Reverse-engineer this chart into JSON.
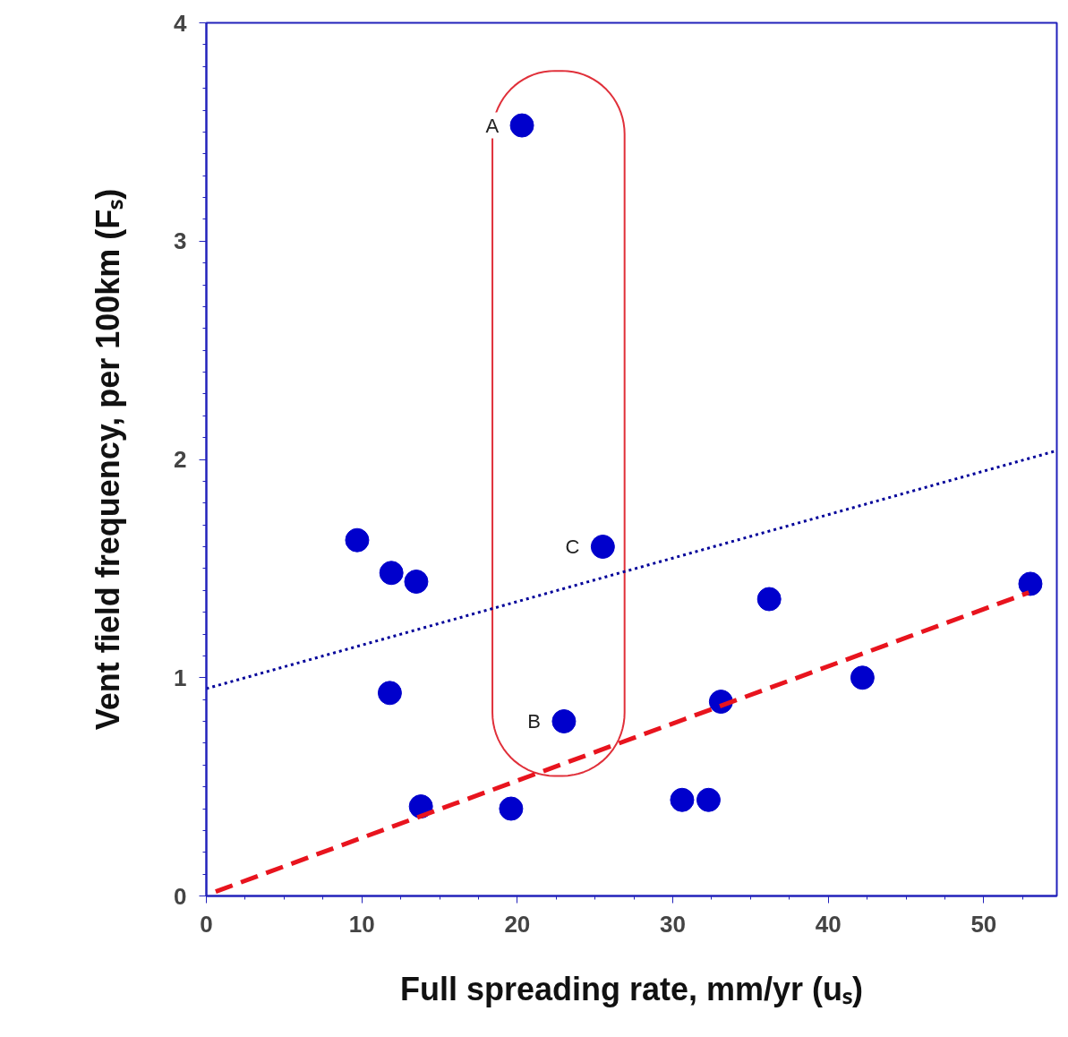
{
  "chart_data": {
    "type": "scatter",
    "xlabel": "Full spreading rate, mm/yr (uₛ)",
    "ylabel": "Vent field frequency, per 100km (Fₛ)",
    "xlim": [
      0,
      54.7
    ],
    "ylim": [
      0,
      4
    ],
    "xticks": [
      0,
      10,
      20,
      30,
      40,
      50
    ],
    "yticks": [
      0,
      1,
      2,
      3,
      4
    ],
    "grid": false,
    "series": [
      {
        "marker": "circle",
        "color": "#0000cc",
        "x": [
          9.7,
          11.9,
          13.5,
          11.8,
          13.8,
          19.6,
          20.3,
          23.0,
          25.5,
          30.6,
          32.3,
          33.1,
          36.2,
          42.2,
          53.0
        ],
        "values": [
          1.63,
          1.48,
          1.44,
          0.93,
          0.41,
          0.4,
          3.53,
          0.8,
          1.6,
          0.44,
          0.44,
          0.89,
          1.36,
          1.0,
          1.43
        ]
      },
      {
        "type": "line",
        "color": "#000099",
        "line_style": "dotted",
        "x": [
          0,
          54.7
        ],
        "values": [
          0.95,
          2.04
        ]
      },
      {
        "type": "line",
        "color": "#e8141e",
        "line_style": "dashed",
        "x": [
          0.6,
          52.9
        ],
        "values": [
          0.02,
          1.39
        ]
      }
    ],
    "annotations": [
      {
        "text": "A",
        "x": 20.3,
        "y": 3.53
      },
      {
        "text": "B",
        "x": 23.0,
        "y": 0.8
      },
      {
        "text": "C",
        "x": 25.5,
        "y": 1.6
      }
    ]
  }
}
